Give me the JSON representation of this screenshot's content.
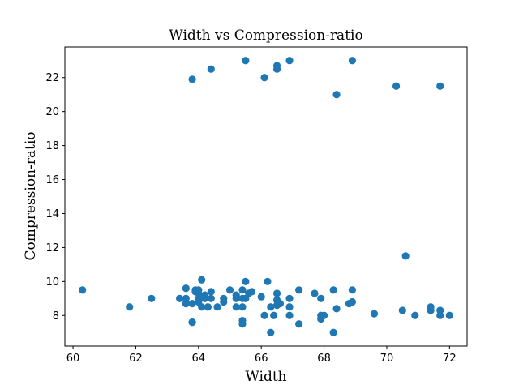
{
  "chart_data": {
    "type": "scatter",
    "title": "Width vs Compression-ratio",
    "xlabel": "Width",
    "ylabel": "Compression-ratio",
    "xlim": [
      59.74,
      72.56
    ],
    "ylim": [
      6.2,
      23.8
    ],
    "xticks": [
      60,
      62,
      64,
      66,
      68,
      70,
      72
    ],
    "yticks": [
      8,
      10,
      12,
      14,
      16,
      18,
      20,
      22
    ],
    "grid": false,
    "marker_color": "#1f77b4",
    "points": [
      [
        60.3,
        9.5
      ],
      [
        61.8,
        8.5
      ],
      [
        62.5,
        9.0
      ],
      [
        63.4,
        9.0
      ],
      [
        63.6,
        9.6
      ],
      [
        63.6,
        8.7
      ],
      [
        63.6,
        9.0
      ],
      [
        63.8,
        8.7
      ],
      [
        63.8,
        7.6
      ],
      [
        63.8,
        7.6
      ],
      [
        63.9,
        9.4
      ],
      [
        63.9,
        9.5
      ],
      [
        64.0,
        9.3
      ],
      [
        64.0,
        9.0
      ],
      [
        64.0,
        9.5
      ],
      [
        64.0,
        8.8
      ],
      [
        64.1,
        10.1
      ],
      [
        64.1,
        8.5
      ],
      [
        64.2,
        9.0
      ],
      [
        64.2,
        9.2
      ],
      [
        64.3,
        8.5
      ],
      [
        64.4,
        9.0
      ],
      [
        64.4,
        9.4
      ],
      [
        64.6,
        8.5
      ],
      [
        64.8,
        9.0
      ],
      [
        64.8,
        8.8
      ],
      [
        65.0,
        9.5
      ],
      [
        65.2,
        9.0
      ],
      [
        65.2,
        8.5
      ],
      [
        65.2,
        9.2
      ],
      [
        65.4,
        9.5
      ],
      [
        65.4,
        9.0
      ],
      [
        65.4,
        8.5
      ],
      [
        65.4,
        7.5
      ],
      [
        65.4,
        7.7
      ],
      [
        65.5,
        10.0
      ],
      [
        65.6,
        9.3
      ],
      [
        65.7,
        9.4
      ],
      [
        65.5,
        9.0
      ],
      [
        66.0,
        9.1
      ],
      [
        66.1,
        8.0
      ],
      [
        66.2,
        10.0
      ],
      [
        66.3,
        8.5
      ],
      [
        66.3,
        7.0
      ],
      [
        66.4,
        8.0
      ],
      [
        66.5,
        9.3
      ],
      [
        66.5,
        8.6
      ],
      [
        66.5,
        8.9
      ],
      [
        66.6,
        8.7
      ],
      [
        66.9,
        9.0
      ],
      [
        66.9,
        8.0
      ],
      [
        66.9,
        8.5
      ],
      [
        67.2,
        9.5
      ],
      [
        67.2,
        7.5
      ],
      [
        67.7,
        9.3
      ],
      [
        67.9,
        9.0
      ],
      [
        67.9,
        8.0
      ],
      [
        67.9,
        7.8
      ],
      [
        68.0,
        8.0
      ],
      [
        68.3,
        9.5
      ],
      [
        68.3,
        7.0
      ],
      [
        68.4,
        8.4
      ],
      [
        68.8,
        8.7
      ],
      [
        68.9,
        9.5
      ],
      [
        68.9,
        8.8
      ],
      [
        69.6,
        8.1
      ],
      [
        70.3,
        21.5
      ],
      [
        70.5,
        8.3
      ],
      [
        70.6,
        11.5
      ],
      [
        70.9,
        8.0
      ],
      [
        71.4,
        8.3
      ],
      [
        71.4,
        8.5
      ],
      [
        71.7,
        8.3
      ],
      [
        71.7,
        8.0
      ],
      [
        71.7,
        21.5
      ],
      [
        72.0,
        8.0
      ],
      [
        63.8,
        21.9
      ],
      [
        64.4,
        22.5
      ],
      [
        65.5,
        23.0
      ],
      [
        66.1,
        22.0
      ],
      [
        66.5,
        22.5
      ],
      [
        66.5,
        22.7
      ],
      [
        66.9,
        23.0
      ],
      [
        68.4,
        21.0
      ],
      [
        68.9,
        23.0
      ]
    ]
  }
}
